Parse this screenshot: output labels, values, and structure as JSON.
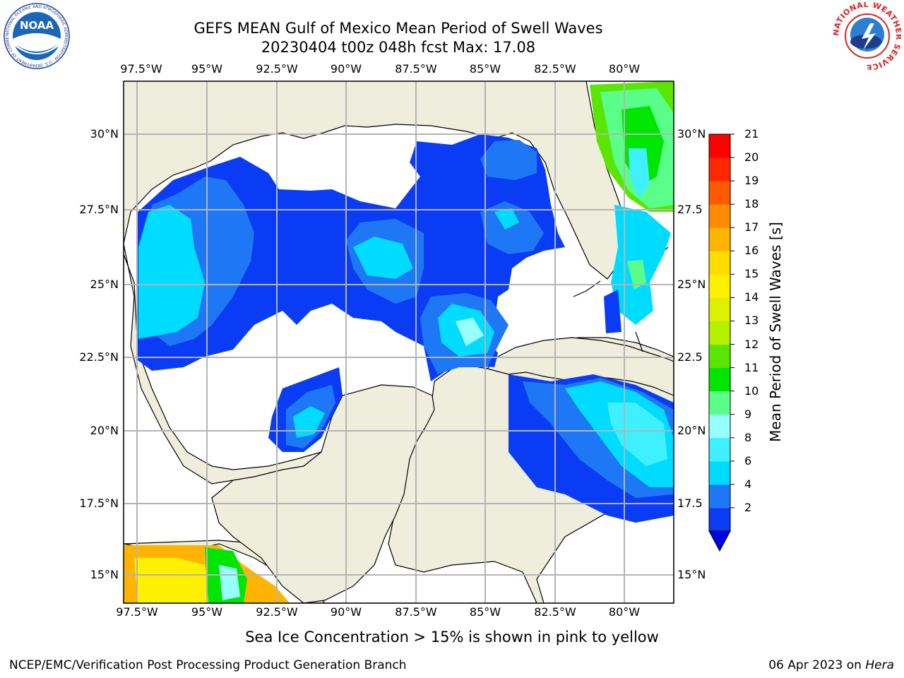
{
  "title": "GEFS MEAN Gulf of Mexico Mean Period of Swell Waves",
  "subtitle": "20230404 t00z 048h fcst   Max: 17.08",
  "map": {
    "lon_labels": [
      "97.5°W",
      "95°W",
      "92.5°W",
      "90°W",
      "87.5°W",
      "85°W",
      "82.5°W",
      "80°W"
    ],
    "lat_labels_left": [
      "30°N",
      "27.5°N",
      "25°N",
      "22.5°N",
      "20°N",
      "17.5°N",
      "15°N"
    ],
    "lat_labels_right": [
      "30°N",
      "27.5",
      "25°N",
      "22.5",
      "20°N",
      "17.5",
      "15°N"
    ],
    "extent": {
      "lon": [
        -98,
        -78.3
      ],
      "lat": [
        14,
        31.8
      ]
    },
    "land_color": "#efeedd",
    "ocean_color": "#ffffff",
    "grid": true
  },
  "colorbar": {
    "label": "Mean Period of Swell Waves [s]",
    "ticks": [
      "21",
      "20",
      "19",
      "18",
      "17",
      "16",
      "15",
      "14",
      "13",
      "12",
      "11",
      "10",
      "9",
      "8",
      "6",
      "4",
      "2"
    ],
    "colors": [
      "#0a3cf5",
      "#1e78f5",
      "#00dcff",
      "#3ff0ff",
      "#98ffff",
      "#5aff8a",
      "#00e600",
      "#5ae600",
      "#b4f000",
      "#dcf000",
      "#fff000",
      "#ffdc00",
      "#ffb400",
      "#ff8c00",
      "#ff5a00",
      "#ff2800",
      "#ff0000"
    ],
    "under_color": "#0000e6"
  },
  "caption": "Sea Ice Concentration > 15% is shown in pink to yellow",
  "credit": "NCEP/EMC/Verification Post Processing Product Generation Branch",
  "date_text": "06 Apr 2023 on ",
  "host": "Hera",
  "logos": {
    "left": {
      "name": "noaa-logo",
      "text": "NOAA",
      "ring_text": "NATIONAL OCEANIC AND ATMOSPHERIC ADMINISTRATION · U.S. DEPARTMENT OF COMMERCE"
    },
    "right": {
      "name": "nws-logo",
      "ring_text": "NATIONAL WEATHER SERVICE"
    }
  }
}
